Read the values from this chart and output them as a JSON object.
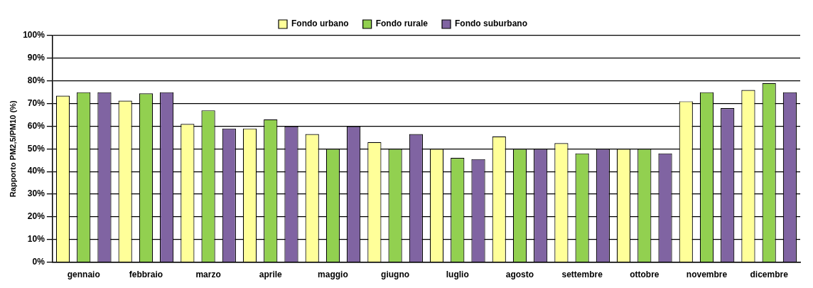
{
  "chart_data": {
    "type": "bar",
    "ylabel": "Rapporto PM2,5/PM10 (%)",
    "categories": [
      "gennaio",
      "febbraio",
      "marzo",
      "aprile",
      "maggio",
      "giugno",
      "luglio",
      "agosto",
      "settembre",
      "ottobre",
      "novembre",
      "dicembre"
    ],
    "series": [
      {
        "name": "Fondo urbano",
        "color": "#ffff99",
        "values": [
          73.5,
          71.3,
          61,
          59,
          56.5,
          53,
          50,
          55.5,
          52.5,
          50,
          71,
          76
        ]
      },
      {
        "name": "Fondo rurale",
        "color": "#92d050",
        "values": [
          75,
          74.5,
          67,
          63,
          50,
          50,
          46,
          50,
          48,
          50,
          75,
          79
        ]
      },
      {
        "name": "Fondo suburbano",
        "color": "#8064a2",
        "values": [
          75,
          75,
          59,
          60,
          60,
          56.5,
          45.5,
          50,
          50,
          48,
          68,
          75
        ]
      }
    ],
    "ylim": [
      0,
      100
    ],
    "yticks": [
      {
        "value": 0,
        "label": "0%"
      },
      {
        "value": 10,
        "label": "10%"
      },
      {
        "value": 20,
        "label": "20%"
      },
      {
        "value": 30,
        "label": "30%"
      },
      {
        "value": 40,
        "label": "40%"
      },
      {
        "value": 50,
        "label": "50%"
      },
      {
        "value": 60,
        "label": "60%"
      },
      {
        "value": 70,
        "label": "70%"
      },
      {
        "value": 80,
        "label": "80%"
      },
      {
        "value": 90,
        "label": "90%"
      },
      {
        "value": 100,
        "label": "100%"
      }
    ],
    "grid": "y",
    "legend": "top"
  }
}
